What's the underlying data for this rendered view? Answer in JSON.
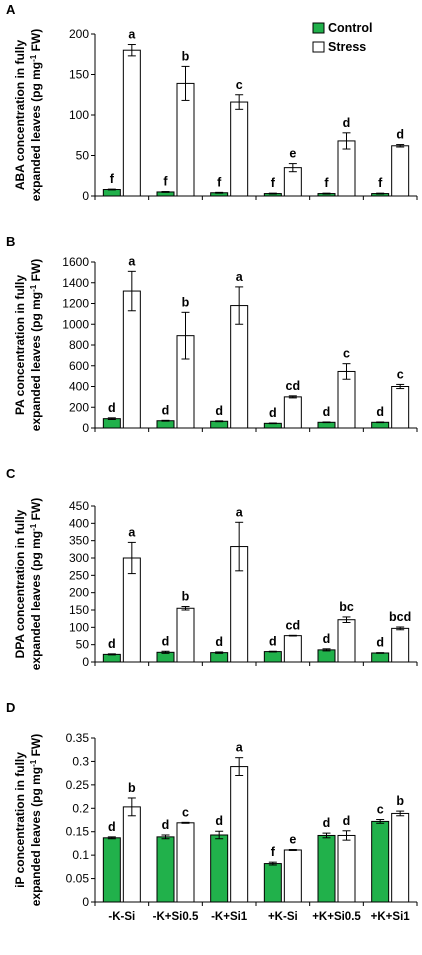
{
  "categories": [
    "-K-Si",
    "-K+Si0.5",
    "-K+Si1",
    "+K-Si",
    "+K+Si0.5",
    "+K+Si1"
  ],
  "legend": {
    "control": "Control",
    "stress": "Stress",
    "placement": "top-right",
    "shown_in_panel": 0
  },
  "colors": {
    "control": "#21b14b",
    "stress": "#ffffff",
    "outline": "#000000"
  },
  "chart_data": [
    {
      "type": "bar",
      "panel_label": "A",
      "ylabel_line1": "ABA concentration in fully",
      "ylabel_line2_pre": "expanded leaves (pg mg",
      "ylabel_line2_sup": "-1",
      "ylabel_line2_post": " FW)",
      "ylim": [
        0,
        200
      ],
      "yticks": [
        0,
        50,
        100,
        150,
        200
      ],
      "tick_labels": [
        "0",
        "50",
        "100",
        "150",
        "200"
      ],
      "grid": false,
      "series": [
        {
          "name": "Control",
          "values": [
            8,
            5,
            4,
            3,
            3,
            3
          ],
          "errors": [
            0.5,
            0.5,
            0.5,
            0.5,
            0.5,
            0.5
          ],
          "letters": [
            "f",
            "f",
            "f",
            "f",
            "f",
            "f"
          ]
        },
        {
          "name": "Stress",
          "values": [
            180,
            139,
            116,
            35,
            68,
            62
          ],
          "errors": [
            7,
            21,
            9,
            5,
            10,
            1.5
          ],
          "letters": [
            "a",
            "b",
            "c",
            "e",
            "d",
            "d"
          ]
        }
      ]
    },
    {
      "type": "bar",
      "panel_label": "B",
      "ylabel_line1": "PA concentration in fully",
      "ylabel_line2_pre": "expanded leaves (pg mg",
      "ylabel_line2_sup": "-1",
      "ylabel_line2_post": " FW)",
      "ylim": [
        0,
        1600
      ],
      "yticks": [
        0,
        200,
        400,
        600,
        800,
        1000,
        1200,
        1400,
        1600
      ],
      "tick_labels": [
        "0",
        "200",
        "400",
        "600",
        "800",
        "1000",
        "1200",
        "1400",
        "1600"
      ],
      "grid": false,
      "series": [
        {
          "name": "Control",
          "values": [
            90,
            70,
            65,
            45,
            55,
            55
          ],
          "errors": [
            8,
            4,
            4,
            3,
            3,
            3
          ],
          "letters": [
            "d",
            "d",
            "d",
            "d",
            "d",
            "d"
          ]
        },
        {
          "name": "Stress",
          "values": [
            1320,
            890,
            1180,
            300,
            545,
            400
          ],
          "errors": [
            190,
            225,
            180,
            10,
            75,
            20
          ],
          "letters": [
            "a",
            "b",
            "a",
            "cd",
            "c",
            "c"
          ]
        }
      ]
    },
    {
      "type": "bar",
      "panel_label": "C",
      "ylabel_line1": "DPA concentration in fully",
      "ylabel_line2_pre": "expanded leaves (pg mg",
      "ylabel_line2_sup": "-1",
      "ylabel_line2_post": " FW)",
      "ylim": [
        0,
        450
      ],
      "yticks": [
        0,
        50,
        100,
        150,
        200,
        250,
        300,
        350,
        400,
        450
      ],
      "tick_labels": [
        "0",
        "50",
        "100",
        "150",
        "200",
        "250",
        "300",
        "350",
        "400",
        "450"
      ],
      "grid": false,
      "series": [
        {
          "name": "Control",
          "values": [
            22,
            28,
            27,
            30,
            35,
            26
          ],
          "errors": [
            1.5,
            3,
            2,
            1,
            3,
            1
          ],
          "letters": [
            "d",
            "d",
            "d",
            "d",
            "d",
            "d"
          ]
        },
        {
          "name": "Stress",
          "values": [
            300,
            155,
            333,
            76,
            122,
            97
          ],
          "errors": [
            45,
            5,
            70,
            1,
            8,
            4
          ],
          "letters": [
            "a",
            "b",
            "a",
            "cd",
            "bc",
            "bcd"
          ]
        }
      ]
    },
    {
      "type": "bar",
      "panel_label": "D",
      "ylabel_line1": "iP concentration in fully",
      "ylabel_line2_pre": "expanded leaves (pg mg",
      "ylabel_line2_sup": "-1",
      "ylabel_line2_post": " FW)",
      "ylim": [
        0,
        0.35
      ],
      "yticks": [
        0,
        0.05,
        0.1,
        0.15,
        0.2,
        0.25,
        0.3,
        0.35
      ],
      "tick_labels": [
        "0",
        "0.05",
        "0.1",
        "0.15",
        "0.2",
        "0.25",
        "0.3",
        "0.35"
      ],
      "grid": false,
      "series": [
        {
          "name": "Control",
          "values": [
            0.137,
            0.139,
            0.143,
            0.082,
            0.142,
            0.172
          ],
          "errors": [
            0.002,
            0.004,
            0.008,
            0.003,
            0.005,
            0.004
          ],
          "letters": [
            "d",
            "d",
            "d",
            "f",
            "d",
            "c"
          ]
        },
        {
          "name": "Stress",
          "values": [
            0.203,
            0.169,
            0.289,
            0.111,
            0.142,
            0.189
          ],
          "errors": [
            0.019,
            0.001,
            0.019,
            0.001,
            0.01,
            0.005
          ],
          "letters": [
            "b",
            "c",
            "a",
            "e",
            "d",
            "b"
          ]
        }
      ]
    }
  ]
}
